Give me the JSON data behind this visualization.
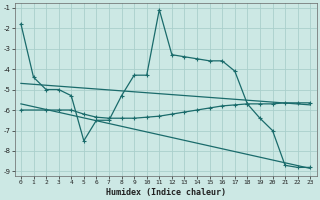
{
  "xlabel": "Humidex (Indice chaleur)",
  "bg_color": "#cce8e4",
  "grid_color": "#aacfcc",
  "line_color": "#1a6b6b",
  "xlim": [
    -0.5,
    23.5
  ],
  "ylim": [
    -9.2,
    -0.8
  ],
  "yticks": [
    -9,
    -8,
    -7,
    -6,
    -5,
    -4,
    -3,
    -2,
    -1
  ],
  "xticks": [
    0,
    1,
    2,
    3,
    4,
    5,
    6,
    7,
    8,
    9,
    10,
    11,
    12,
    13,
    14,
    15,
    16,
    17,
    18,
    19,
    20,
    21,
    22,
    23
  ],
  "series1_x": [
    0,
    1,
    2,
    3,
    4,
    5,
    6,
    7,
    8,
    9,
    10,
    11,
    12,
    13,
    14,
    15,
    16,
    17,
    18,
    19,
    20,
    21,
    22,
    23
  ],
  "series1_y": [
    -1.8,
    -4.4,
    -5.0,
    -5.0,
    -5.3,
    -7.5,
    -6.5,
    -6.5,
    -5.3,
    -4.3,
    -4.3,
    -1.1,
    -3.3,
    -3.4,
    -3.5,
    -3.6,
    -3.6,
    -4.1,
    -5.7,
    -6.4,
    -7.0,
    -8.7,
    -8.8,
    -8.8
  ],
  "series2_x": [
    0,
    2,
    3,
    4,
    5,
    6,
    7,
    8,
    9,
    10,
    11,
    12,
    13,
    14,
    15,
    16,
    17,
    18,
    19,
    20,
    21,
    22,
    23
  ],
  "series2_y": [
    -6.0,
    -6.0,
    -6.0,
    -6.0,
    -6.2,
    -6.35,
    -6.4,
    -6.4,
    -6.4,
    -6.35,
    -6.3,
    -6.2,
    -6.1,
    -6.0,
    -5.9,
    -5.8,
    -5.75,
    -5.7,
    -5.7,
    -5.7,
    -5.65,
    -5.65,
    -5.65
  ],
  "series3_x": [
    0,
    23
  ],
  "series3_y": [
    -5.7,
    -8.85
  ],
  "series4_x": [
    0,
    23
  ],
  "series4_y": [
    -4.7,
    -5.75
  ]
}
